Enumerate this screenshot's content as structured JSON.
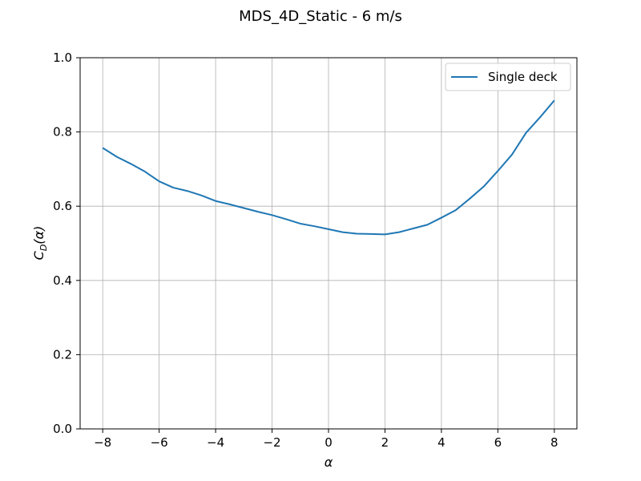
{
  "chart_data": {
    "type": "line",
    "title": "MDS_4D_Static - 6 m/s",
    "xlabel": "α",
    "ylabel": {
      "main": "C",
      "sub": "D",
      "arg": "(α)"
    },
    "xlim": [
      -8.8,
      8.8
    ],
    "ylim": [
      0.0,
      1.0
    ],
    "xticks": [
      -8,
      -6,
      -4,
      -2,
      0,
      2,
      4,
      6,
      8
    ],
    "xtick_labels": [
      "−8",
      "−6",
      "−4",
      "−2",
      "0",
      "2",
      "4",
      "6",
      "8"
    ],
    "yticks": [
      0.0,
      0.2,
      0.4,
      0.6,
      0.8,
      1.0
    ],
    "ytick_labels": [
      "0.0",
      "0.2",
      "0.4",
      "0.6",
      "0.8",
      "1.0"
    ],
    "grid": true,
    "legend_position": "top-right",
    "series": [
      {
        "name": "Single deck",
        "color": "#1f77b4",
        "x": [
          -8.0,
          -7.5,
          -7.0,
          -6.5,
          -6.0,
          -5.5,
          -5.0,
          -4.5,
          -4.0,
          -3.5,
          -3.0,
          -2.5,
          -2.0,
          -1.5,
          -1.0,
          -0.5,
          0.0,
          0.5,
          1.0,
          1.5,
          2.0,
          2.5,
          3.0,
          3.5,
          4.0,
          4.5,
          5.0,
          5.5,
          6.0,
          6.5,
          7.0,
          7.5,
          8.0
        ],
        "y": [
          0.757,
          0.733,
          0.714,
          0.693,
          0.667,
          0.65,
          0.641,
          0.629,
          0.614,
          0.605,
          0.595,
          0.585,
          0.576,
          0.565,
          0.553,
          0.546,
          0.538,
          0.53,
          0.526,
          0.525,
          0.524,
          0.53,
          0.54,
          0.55,
          0.569,
          0.589,
          0.62,
          0.653,
          0.695,
          0.739,
          0.798,
          0.84,
          0.885
        ]
      }
    ]
  }
}
